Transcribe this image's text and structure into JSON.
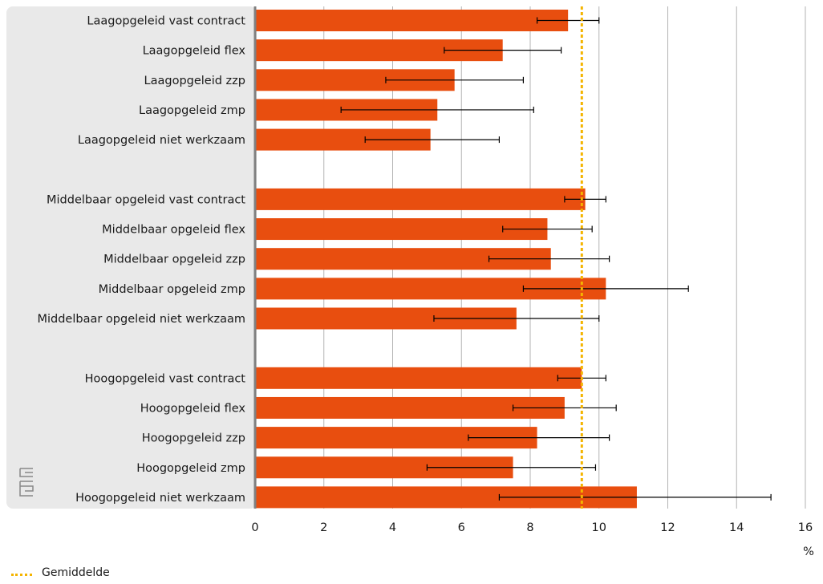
{
  "chart_data": {
    "type": "bar",
    "orientation": "horizontal",
    "categories": [
      "Laagopgeleid vast contract",
      "Laagopgeleid flex",
      "Laagopgeleid zzp",
      "Laagopgeleid zmp",
      "Laagopgeleid niet werkzaam",
      "",
      "Middelbaar opgeleid vast contract",
      "Middelbaar opgeleid flex",
      "Middelbaar opgeleid zzp",
      "Middelbaar opgeleid zmp",
      "Middelbaar opgeleid niet werkzaam",
      "",
      "Hoogopgeleid vast contract",
      "Hoogopgeleid flex",
      "Hoogopgeleid zzp",
      "Hoogopgeleid zmp",
      "Hoogopgeleid niet werkzaam"
    ],
    "values": [
      9.1,
      7.2,
      5.8,
      5.3,
      5.1,
      null,
      9.6,
      8.5,
      8.6,
      10.2,
      7.6,
      null,
      9.5,
      9.0,
      8.2,
      7.5,
      11.1
    ],
    "error_low": [
      8.2,
      5.5,
      3.8,
      2.5,
      3.2,
      null,
      9.0,
      7.2,
      6.8,
      7.8,
      5.2,
      null,
      8.8,
      7.5,
      6.2,
      5.0,
      7.1
    ],
    "error_high": [
      10.0,
      8.9,
      7.8,
      8.1,
      7.1,
      null,
      10.2,
      9.8,
      10.3,
      12.6,
      10.0,
      null,
      10.2,
      10.5,
      10.3,
      9.9,
      15.0
    ],
    "average": 9.5,
    "xlim": [
      0,
      16
    ],
    "xticks": [
      0,
      2,
      4,
      6,
      8,
      10,
      12,
      14,
      16
    ],
    "unit": "%",
    "title": "",
    "xlabel": "",
    "ylabel": "",
    "grid": true,
    "legend": {
      "placement": "bottom-left",
      "entries": [
        "Gemiddelde"
      ]
    },
    "colors": {
      "bar": "#e84e0f",
      "average": "#f4b400",
      "panel": "#e9e9e9",
      "grid": "#b3b3b3",
      "axis": "#808080",
      "error": "#000000"
    }
  }
}
